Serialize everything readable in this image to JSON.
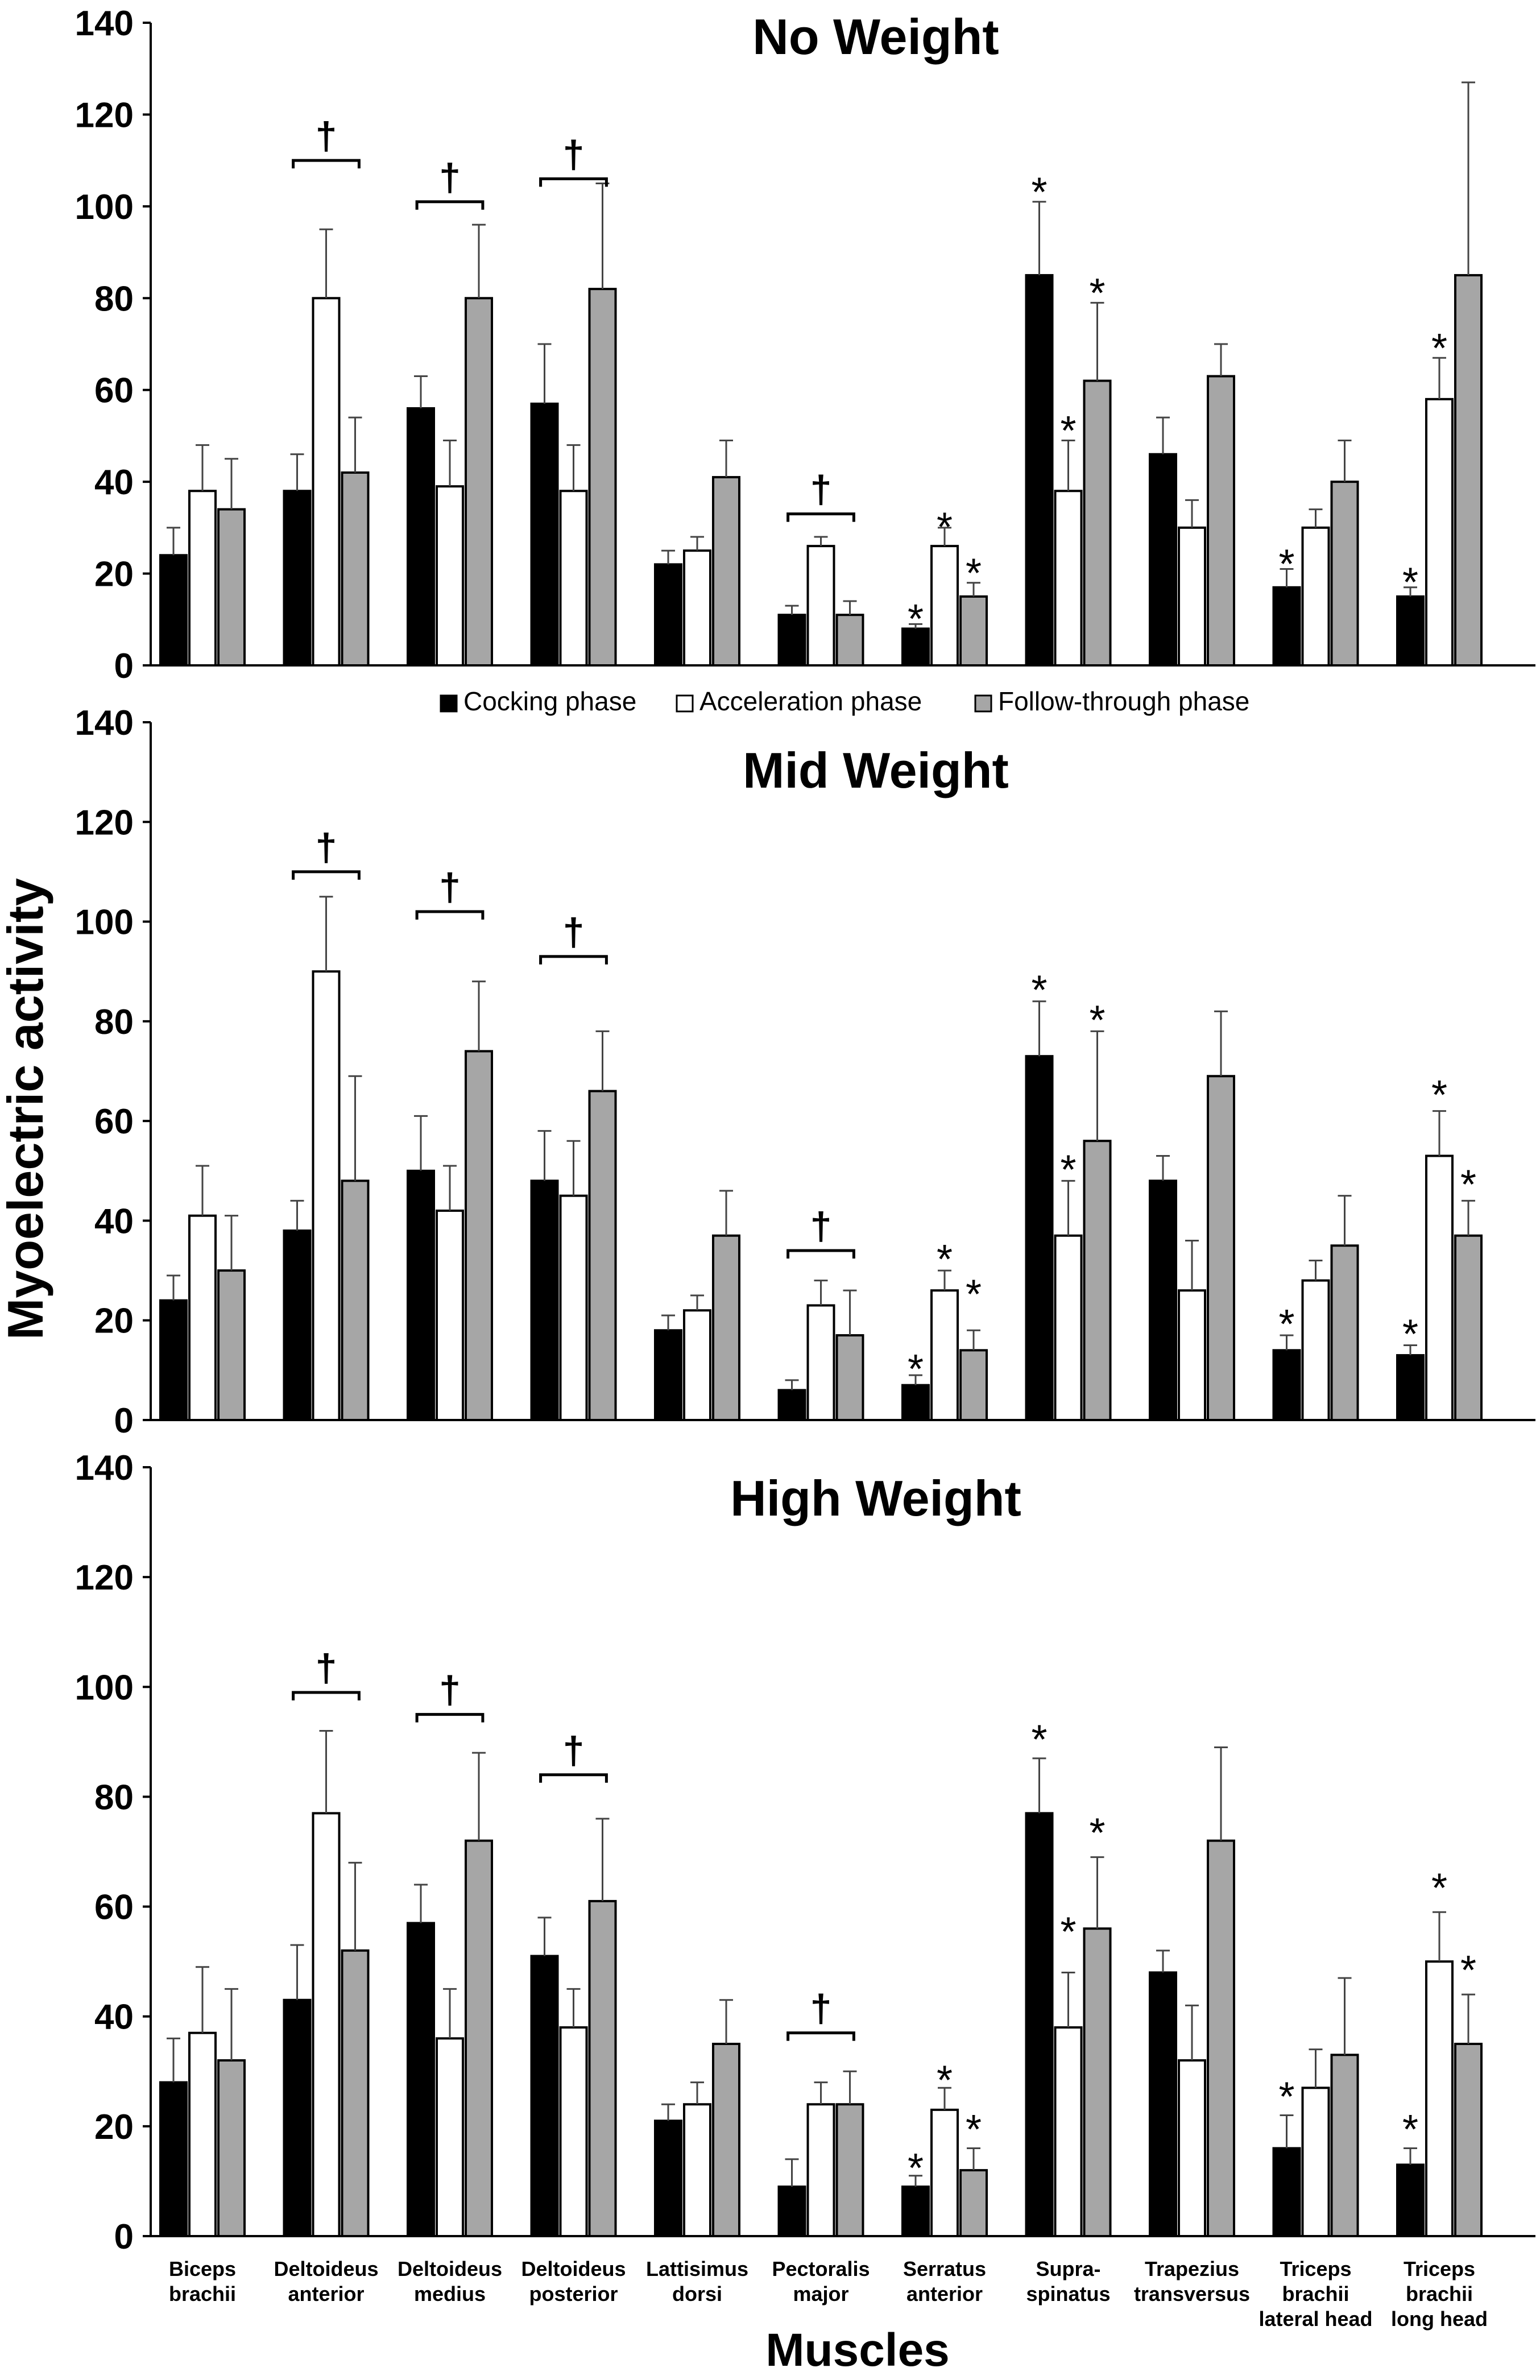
{
  "figure": {
    "ylabel": "Myoelectric activity",
    "xlabel": "Muscles"
  },
  "legend": {
    "items": [
      {
        "name": "Cocking phase",
        "color": "#000000"
      },
      {
        "name": "Acceleration phase",
        "color": "#ffffff"
      },
      {
        "name": "Follow-through phase",
        "color": "#a6a6a6"
      }
    ]
  },
  "categories": [
    [
      "Biceps",
      "brachii"
    ],
    [
      "Deltoideus",
      "anterior"
    ],
    [
      "Deltoideus",
      "medius"
    ],
    [
      "Deltoideus",
      "posterior"
    ],
    [
      "Lattisimus",
      "dorsi"
    ],
    [
      "Pectoralis",
      "major"
    ],
    [
      "Serratus",
      "anterior"
    ],
    [
      "Supra-",
      "spinatus"
    ],
    [
      "Trapezius",
      "transversus"
    ],
    [
      "Triceps",
      "brachii",
      "lateral head"
    ],
    [
      "Triceps",
      "brachii",
      "long head"
    ]
  ],
  "chart_data": [
    {
      "type": "bar",
      "title": "No Weight",
      "xlabel": "Muscles",
      "ylabel": "Myoelectric activity",
      "ylim": [
        0,
        140
      ],
      "yticks": [
        0,
        20,
        40,
        60,
        80,
        100,
        120,
        140
      ],
      "categories": [
        "Biceps brachii",
        "Deltoideus anterior",
        "Deltoideus medius",
        "Deltoideus posterior",
        "Lattisimus dorsi",
        "Pectoralis major",
        "Serratus anterior",
        "Supra-spinatus",
        "Trapezius transversus",
        "Triceps brachii lateral head",
        "Triceps brachii long head"
      ],
      "series": [
        {
          "name": "Cocking phase",
          "values": [
            24,
            38,
            56,
            57,
            22,
            11,
            8,
            85,
            46,
            17,
            15
          ],
          "errors": [
            6,
            8,
            7,
            13,
            3,
            2,
            1,
            16,
            8,
            4,
            2
          ]
        },
        {
          "name": "Acceleration phase",
          "values": [
            38,
            80,
            39,
            38,
            25,
            26,
            26,
            38,
            30,
            30,
            58
          ],
          "errors": [
            10,
            15,
            10,
            10,
            3,
            2,
            4,
            11,
            6,
            4,
            9
          ]
        },
        {
          "name": "Follow-through phase",
          "values": [
            34,
            42,
            80,
            82,
            41,
            11,
            15,
            62,
            63,
            40,
            85
          ],
          "errors": [
            11,
            12,
            16,
            23,
            8,
            3,
            3,
            17,
            7,
            9,
            42
          ]
        }
      ],
      "annotations": [
        {
          "text": "†",
          "bracket": true,
          "category": 1,
          "value": 110
        },
        {
          "text": "†",
          "bracket": true,
          "category": 2,
          "value": 101
        },
        {
          "text": "†",
          "bracket": true,
          "category": 3,
          "value": 106
        },
        {
          "text": "†",
          "bracket": true,
          "category": 5,
          "value": 33
        },
        {
          "text": "*",
          "category": 6,
          "series": 0,
          "value": 12
        },
        {
          "text": "*",
          "category": 6,
          "series": 1,
          "value": 32
        },
        {
          "text": "*",
          "category": 6,
          "series": 2,
          "value": 22
        },
        {
          "text": "*",
          "category": 7,
          "series": 0,
          "value": 105
        },
        {
          "text": "*",
          "category": 7,
          "series": 1,
          "value": 53
        },
        {
          "text": "*",
          "category": 7,
          "series": 2,
          "value": 83
        },
        {
          "text": "*",
          "category": 9,
          "series": 0,
          "value": 24
        },
        {
          "text": "*",
          "category": 10,
          "series": 0,
          "value": 20
        },
        {
          "text": "*",
          "category": 10,
          "series": 1,
          "value": 71
        }
      ]
    },
    {
      "type": "bar",
      "title": "Mid Weight",
      "xlabel": "Muscles",
      "ylabel": "Myoelectric activity",
      "ylim": [
        0,
        140
      ],
      "yticks": [
        0,
        20,
        40,
        60,
        80,
        100,
        120,
        140
      ],
      "categories": [
        "Biceps brachii",
        "Deltoideus anterior",
        "Deltoideus medius",
        "Deltoideus posterior",
        "Lattisimus dorsi",
        "Pectoralis major",
        "Serratus anterior",
        "Supra-spinatus",
        "Trapezius transversus",
        "Triceps brachii lateral head",
        "Triceps brachii long head"
      ],
      "series": [
        {
          "name": "Cocking phase",
          "values": [
            24,
            38,
            50,
            48,
            18,
            6,
            7,
            73,
            48,
            14,
            13
          ],
          "errors": [
            5,
            6,
            11,
            10,
            3,
            2,
            2,
            11,
            5,
            3,
            2
          ]
        },
        {
          "name": "Acceleration phase",
          "values": [
            41,
            90,
            42,
            45,
            22,
            23,
            26,
            37,
            26,
            28,
            53
          ],
          "errors": [
            10,
            15,
            9,
            11,
            3,
            5,
            4,
            11,
            10,
            4,
            9
          ]
        },
        {
          "name": "Follow-through phase",
          "values": [
            30,
            48,
            74,
            66,
            37,
            17,
            14,
            56,
            69,
            35,
            37
          ],
          "errors": [
            11,
            21,
            14,
            12,
            9,
            9,
            4,
            22,
            13,
            10,
            7
          ]
        }
      ],
      "annotations": [
        {
          "text": "†",
          "bracket": true,
          "category": 1,
          "value": 110
        },
        {
          "text": "†",
          "bracket": true,
          "category": 2,
          "value": 102
        },
        {
          "text": "†",
          "bracket": true,
          "category": 3,
          "value": 93
        },
        {
          "text": "†",
          "bracket": true,
          "category": 5,
          "value": 34
        },
        {
          "text": "*",
          "category": 6,
          "series": 0,
          "value": 12
        },
        {
          "text": "*",
          "category": 6,
          "series": 1,
          "value": 34
        },
        {
          "text": "*",
          "category": 6,
          "series": 2,
          "value": 27
        },
        {
          "text": "*",
          "category": 7,
          "series": 0,
          "value": 88
        },
        {
          "text": "*",
          "category": 7,
          "series": 1,
          "value": 52
        },
        {
          "text": "*",
          "category": 7,
          "series": 2,
          "value": 82
        },
        {
          "text": "*",
          "category": 9,
          "series": 0,
          "value": 21
        },
        {
          "text": "*",
          "category": 10,
          "series": 0,
          "value": 19
        },
        {
          "text": "*",
          "category": 10,
          "series": 1,
          "value": 67
        },
        {
          "text": "*",
          "category": 10,
          "series": 2,
          "value": 49
        }
      ]
    },
    {
      "type": "bar",
      "title": "High Weight",
      "xlabel": "Muscles",
      "ylabel": "Myoelectric activity",
      "ylim": [
        0,
        140
      ],
      "yticks": [
        0,
        20,
        40,
        60,
        80,
        100,
        120,
        140
      ],
      "categories": [
        "Biceps brachii",
        "Deltoideus anterior",
        "Deltoideus medius",
        "Deltoideus posterior",
        "Lattisimus dorsi",
        "Pectoralis major",
        "Serratus anterior",
        "Supra-spinatus",
        "Trapezius transversus",
        "Triceps brachii lateral head",
        "Triceps brachii long head"
      ],
      "series": [
        {
          "name": "Cocking phase",
          "values": [
            28,
            43,
            57,
            51,
            21,
            9,
            9,
            77,
            48,
            16,
            13
          ],
          "errors": [
            8,
            10,
            7,
            7,
            3,
            5,
            2,
            10,
            4,
            6,
            3
          ]
        },
        {
          "name": "Acceleration phase",
          "values": [
            37,
            77,
            36,
            38,
            24,
            24,
            23,
            38,
            32,
            27,
            50
          ],
          "errors": [
            12,
            15,
            9,
            7,
            4,
            4,
            4,
            10,
            10,
            7,
            9
          ]
        },
        {
          "name": "Follow-through phase",
          "values": [
            32,
            52,
            72,
            61,
            35,
            24,
            12,
            56,
            72,
            33,
            35
          ],
          "errors": [
            13,
            16,
            16,
            15,
            8,
            6,
            4,
            13,
            17,
            14,
            9
          ]
        }
      ],
      "annotations": [
        {
          "text": "†",
          "bracket": true,
          "category": 1,
          "value": 99
        },
        {
          "text": "†",
          "bracket": true,
          "category": 2,
          "value": 95
        },
        {
          "text": "†",
          "bracket": true,
          "category": 3,
          "value": 84
        },
        {
          "text": "†",
          "bracket": true,
          "category": 5,
          "value": 37
        },
        {
          "text": "*",
          "category": 6,
          "series": 0,
          "value": 14
        },
        {
          "text": "*",
          "category": 6,
          "series": 1,
          "value": 30
        },
        {
          "text": "*",
          "category": 6,
          "series": 2,
          "value": 21
        },
        {
          "text": "*",
          "category": 7,
          "series": 0,
          "value": 92
        },
        {
          "text": "*",
          "category": 7,
          "series": 1,
          "value": 57
        },
        {
          "text": "*",
          "category": 7,
          "series": 2,
          "value": 75
        },
        {
          "text": "*",
          "category": 9,
          "series": 0,
          "value": 27
        },
        {
          "text": "*",
          "category": 10,
          "series": 0,
          "value": 21
        },
        {
          "text": "*",
          "category": 10,
          "series": 1,
          "value": 65
        },
        {
          "text": "*",
          "category": 10,
          "series": 2,
          "value": 50
        }
      ]
    }
  ]
}
